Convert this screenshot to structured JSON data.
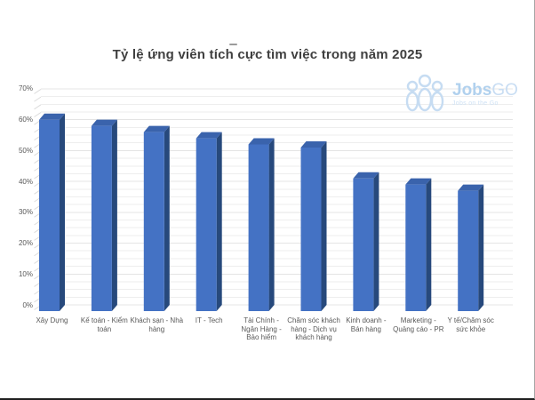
{
  "title": "Tỷ lệ ứng viên tích cực tìm việc trong năm 2025",
  "logo": {
    "brand_bold": "Jobs",
    "brand_light": "GO",
    "tagline": "Jobs on the Go",
    "color": "#b1d1ee"
  },
  "chart_data": {
    "type": "bar",
    "style": "3d-column",
    "title": "Tỷ lệ ứng viên tích cực tìm việc trong năm 2025",
    "categories": [
      "Xây Dựng",
      "Kế toán - Kiểm toán",
      "Khách sạn - Nhà hàng",
      "IT - Tech",
      "Tài Chính - Ngân Hàng - Bảo hiểm",
      "Chăm sóc khách hàng - Dịch vụ khách hàng",
      "Kinh doanh - Bán hàng",
      "Marketing - Quảng cáo - PR",
      "Y tế/Chăm sóc sức khỏe"
    ],
    "values": [
      62,
      60,
      58,
      56,
      54,
      53,
      43,
      41,
      39
    ],
    "unit": "%",
    "xlabel": "",
    "ylabel": "",
    "ylim": [
      0,
      70
    ],
    "ytick_step": 10,
    "ytick_labels": [
      "0%",
      "10%",
      "20%",
      "30%",
      "40%",
      "50%",
      "60%",
      "70%"
    ],
    "grid": true,
    "legend": false,
    "colors": {
      "bar_front": "#4472c4",
      "bar_side": "#27497c",
      "bar_top": "#3a63ac",
      "gridline_minor": "#eeeeee",
      "gridline_major": "#e4e4e4",
      "axis_text": "#595959",
      "title_text": "#3f3f3f"
    }
  }
}
